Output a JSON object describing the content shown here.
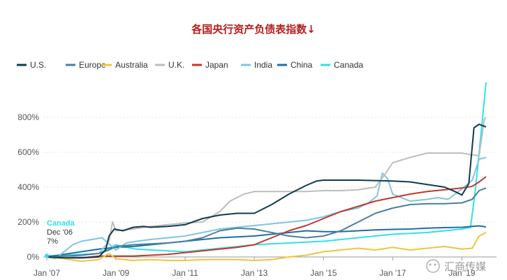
{
  "chart_data": {
    "type": "line",
    "title": "各国央行资产负债表指数↓",
    "xlabel": "",
    "ylabel": "",
    "x_range": [
      2007.0,
      2019.8
    ],
    "ylim": [
      0,
      1000
    ],
    "y_ticks": [
      "0%",
      "200%",
      "400%",
      "600%",
      "800%"
    ],
    "x_ticks": [
      "Jan '07",
      "Jan '09",
      "Jan '11",
      "Jan '13",
      "Jan '15",
      "Jan '17",
      "Jan '19"
    ],
    "grid": true,
    "legend": [
      "U.S.",
      "Europe",
      "Australia",
      "U.K.",
      "Japan",
      "India",
      "China",
      "Canada"
    ],
    "series": [
      {
        "name": "U.S.",
        "color": "#123b4c",
        "x": [
          2007.0,
          2007.5,
          2008.0,
          2008.5,
          2008.7,
          2008.8,
          2008.95,
          2009.2,
          2009.5,
          2009.8,
          2010.0,
          2010.5,
          2011.0,
          2011.5,
          2012.0,
          2012.5,
          2013.0,
          2013.5,
          2014.0,
          2014.5,
          2014.8,
          2015.0,
          2016.0,
          2017.0,
          2017.5,
          2018.0,
          2018.5,
          2018.8,
          2019.0,
          2019.2,
          2019.35,
          2019.5,
          2019.7
        ],
        "y": [
          0,
          -5,
          -5,
          0,
          40,
          120,
          160,
          150,
          170,
          175,
          170,
          175,
          185,
          220,
          240,
          250,
          250,
          300,
          360,
          410,
          435,
          440,
          440,
          435,
          430,
          415,
          400,
          375,
          355,
          420,
          740,
          760,
          745
        ]
      },
      {
        "name": "Europe",
        "color": "#4a7f9e",
        "x": [
          2007.0,
          2007.5,
          2008.0,
          2008.5,
          2008.8,
          2009.0,
          2009.5,
          2010.0,
          2010.5,
          2011.0,
          2011.5,
          2012.0,
          2012.5,
          2013.0,
          2013.5,
          2014.0,
          2014.5,
          2015.0,
          2015.5,
          2016.0,
          2016.5,
          2017.0,
          2017.5,
          2018.0,
          2018.5,
          2019.0,
          2019.3,
          2019.5,
          2019.7
        ],
        "y": [
          0,
          5,
          10,
          20,
          40,
          60,
          70,
          75,
          80,
          90,
          110,
          150,
          165,
          160,
          140,
          120,
          110,
          120,
          150,
          200,
          250,
          280,
          300,
          305,
          305,
          310,
          330,
          380,
          395
        ]
      },
      {
        "name": "Australia",
        "color": "#efc444",
        "x": [
          2007.0,
          2007.5,
          2008.0,
          2008.5,
          2008.8,
          2009.0,
          2009.5,
          2010.0,
          2010.5,
          2011.0,
          2011.5,
          2012.0,
          2012.5,
          2013.0,
          2013.5,
          2014.0,
          2014.5,
          2015.0,
          2015.5,
          2016.0,
          2016.5,
          2017.0,
          2017.5,
          2018.0,
          2018.5,
          2019.0,
          2019.3,
          2019.5,
          2019.7
        ],
        "y": [
          0,
          -10,
          -25,
          -15,
          20,
          -10,
          -20,
          -15,
          -20,
          -20,
          -15,
          -15,
          -15,
          -20,
          -15,
          0,
          10,
          30,
          40,
          50,
          40,
          55,
          40,
          50,
          60,
          45,
          50,
          120,
          140
        ]
      },
      {
        "name": "U.K.",
        "color": "#bdbdbd",
        "x": [
          2007.0,
          2007.5,
          2008.0,
          2008.5,
          2008.8,
          2008.9,
          2009.0,
          2009.5,
          2010.0,
          2010.5,
          2011.0,
          2011.5,
          2012.0,
          2012.3,
          2012.7,
          2013.0,
          2013.5,
          2014.0,
          2014.5,
          2015.0,
          2015.5,
          2016.0,
          2016.5,
          2016.8,
          2017.0,
          2017.5,
          2018.0,
          2018.5,
          2019.0,
          2019.3,
          2019.5,
          2019.65,
          2019.7
        ],
        "y": [
          0,
          0,
          10,
          20,
          90,
          200,
          150,
          160,
          175,
          185,
          195,
          200,
          260,
          320,
          360,
          375,
          375,
          375,
          375,
          380,
          380,
          385,
          400,
          480,
          540,
          570,
          595,
          595,
          595,
          585,
          580,
          790,
          800
        ]
      },
      {
        "name": "Japan",
        "color": "#c0392b",
        "x": [
          2007.0,
          2007.5,
          2008.0,
          2008.5,
          2009.0,
          2009.5,
          2010.0,
          2010.5,
          2011.0,
          2011.5,
          2012.0,
          2012.5,
          2013.0,
          2013.5,
          2014.0,
          2014.5,
          2015.0,
          2015.5,
          2016.0,
          2016.5,
          2017.0,
          2017.5,
          2018.0,
          2018.5,
          2019.0,
          2019.3,
          2019.5,
          2019.7
        ],
        "y": [
          0,
          -5,
          -5,
          5,
          5,
          5,
          10,
          15,
          25,
          35,
          45,
          55,
          70,
          110,
          150,
          180,
          220,
          260,
          290,
          320,
          340,
          360,
          375,
          385,
          395,
          405,
          430,
          460
        ]
      },
      {
        "name": "India",
        "color": "#7ec6de",
        "x": [
          2007.0,
          2007.25,
          2007.5,
          2007.75,
          2008.0,
          2008.3,
          2008.6,
          2009.0,
          2009.3,
          2009.6,
          2010.0,
          2010.5,
          2011.0,
          2011.5,
          2012.0,
          2012.5,
          2013.0,
          2013.5,
          2014.0,
          2014.5,
          2015.0,
          2015.5,
          2016.0,
          2016.3,
          2016.55,
          2016.7,
          2016.85,
          2017.0,
          2017.5,
          2018.0,
          2018.3,
          2018.6,
          2019.0,
          2019.3,
          2019.5,
          2019.7
        ],
        "y": [
          0,
          -10,
          30,
          70,
          90,
          100,
          110,
          40,
          80,
          90,
          100,
          110,
          120,
          140,
          160,
          170,
          180,
          190,
          200,
          210,
          230,
          260,
          280,
          310,
          350,
          480,
          450,
          360,
          320,
          330,
          340,
          330,
          390,
          440,
          560,
          570
        ]
      },
      {
        "name": "China",
        "color": "#1b6fa8",
        "x": [
          2007.0,
          2007.5,
          2008.0,
          2008.5,
          2009.0,
          2009.5,
          2010.0,
          2010.5,
          2011.0,
          2011.5,
          2012.0,
          2012.5,
          2013.0,
          2013.5,
          2014.0,
          2014.5,
          2015.0,
          2015.5,
          2016.0,
          2016.5,
          2017.0,
          2017.5,
          2018.0,
          2018.5,
          2019.0,
          2019.3,
          2019.5,
          2019.7
        ],
        "y": [
          0,
          15,
          30,
          45,
          55,
          60,
          70,
          80,
          90,
          100,
          110,
          115,
          120,
          130,
          140,
          150,
          145,
          145,
          150,
          155,
          158,
          160,
          165,
          168,
          170,
          175,
          178,
          172
        ]
      },
      {
        "name": "Canada",
        "color": "#33e0e8",
        "x": [
          2007.0,
          2007.5,
          2008.0,
          2008.5,
          2008.8,
          2009.0,
          2009.3,
          2009.6,
          2010.0,
          2010.5,
          2011.0,
          2011.5,
          2012.0,
          2012.5,
          2013.0,
          2013.5,
          2014.0,
          2014.5,
          2015.0,
          2015.5,
          2016.0,
          2016.5,
          2017.0,
          2017.5,
          2018.0,
          2018.5,
          2019.0,
          2019.25,
          2019.4,
          2019.55,
          2019.7
        ],
        "y": [
          7,
          10,
          15,
          20,
          50,
          70,
          55,
          45,
          40,
          35,
          30,
          40,
          50,
          60,
          70,
          75,
          80,
          85,
          90,
          100,
          110,
          120,
          130,
          135,
          140,
          150,
          160,
          170,
          400,
          700,
          1000
        ]
      }
    ],
    "annotation": {
      "label": "Canada",
      "date": "Dec '06",
      "value": "7%"
    }
  },
  "watermark": {
    "text": "汇商传媒"
  }
}
